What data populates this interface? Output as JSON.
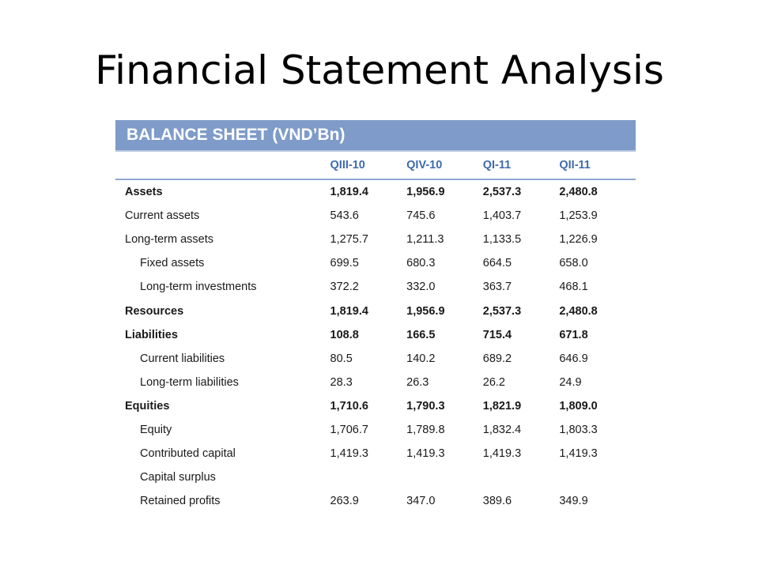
{
  "title": "Financial Statement Analysis",
  "sheet": {
    "header": "BALANCE SHEET (VND’Bn)",
    "columns": [
      "QIII-10",
      "QIV-10",
      "QI-11",
      "QII-11"
    ],
    "rows": [
      {
        "label": "Assets",
        "values": [
          "1,819.4",
          "1,956.9",
          "2,537.3",
          "2,480.8"
        ]
      },
      {
        "label": "Current assets",
        "values": [
          "543.6",
          "745.6",
          "1,403.7",
          "1,253.9"
        ]
      },
      {
        "label": "Long-term assets",
        "values": [
          "1,275.7",
          "1,211.3",
          "1,133.5",
          "1,226.9"
        ]
      },
      {
        "label": "Fixed assets",
        "values": [
          "699.5",
          "680.3",
          "664.5",
          "658.0"
        ]
      },
      {
        "label": "Long-term investments",
        "values": [
          "372.2",
          "332.0",
          "363.7",
          "468.1"
        ]
      },
      {
        "label": "Resources",
        "values": [
          "1,819.4",
          "1,956.9",
          "2,537.3",
          "2,480.8"
        ]
      },
      {
        "label": "Liabilities",
        "values": [
          "108.8",
          "166.5",
          "715.4",
          "671.8"
        ]
      },
      {
        "label": "Current liabilities",
        "values": [
          "80.5",
          "140.2",
          "689.2",
          "646.9"
        ]
      },
      {
        "label": "Long-term liabilities",
        "values": [
          "28.3",
          "26.3",
          "26.2",
          "24.9"
        ]
      },
      {
        "label": "Equities",
        "values": [
          "1,710.6",
          "1,790.3",
          "1,821.9",
          "1,809.0"
        ]
      },
      {
        "label": "Equity",
        "values": [
          "1,706.7",
          "1,789.8",
          "1,832.4",
          "1,803.3"
        ]
      },
      {
        "label": "Contributed capital",
        "values": [
          "1,419.3",
          "1,419.3",
          "1,419.3",
          "1,419.3"
        ]
      },
      {
        "label": "Capital surplus",
        "values": [
          "",
          "",
          "",
          ""
        ]
      },
      {
        "label": "Retained profits",
        "values": [
          "263.9",
          "347.0",
          "389.6",
          "349.9"
        ]
      }
    ]
  },
  "colors": {
    "header_bg": "#7e9bc9",
    "column_header_text": "#3f6aae"
  }
}
